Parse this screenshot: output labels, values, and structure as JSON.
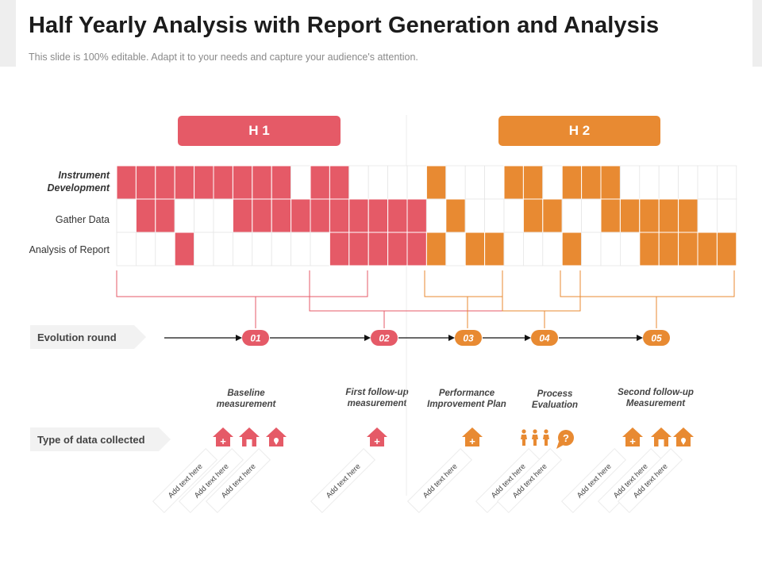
{
  "header": {
    "title": "Half Yearly Analysis  with Report Generation and Analysis",
    "subtitle": "This slide is 100% editable. Adapt it to your needs and capture your audience's attention."
  },
  "colors": {
    "red": "#e55a67",
    "orange": "#e88a32",
    "grid": "#e6e6e6",
    "label_bg": "#f2f2f2"
  },
  "halves": [
    {
      "label": "H 1",
      "color": "#e55a67"
    },
    {
      "label": "H 2",
      "color": "#e88a32"
    }
  ],
  "rows": [
    {
      "label": "Instrument\nDevelopment",
      "italic": true
    },
    {
      "label": "Gather Data",
      "italic": false
    },
    {
      "label": "Analysis of Report",
      "italic": false
    }
  ],
  "grid": {
    "columns": 32,
    "h1_columns": 15,
    "filled": [
      [
        0,
        1,
        2,
        3,
        4,
        5,
        6,
        7,
        8,
        10,
        11,
        16,
        20,
        21,
        23,
        24,
        25
      ],
      [
        1,
        2,
        6,
        7,
        8,
        9,
        10,
        11,
        12,
        13,
        14,
        15,
        17,
        21,
        22,
        25,
        26,
        27,
        28,
        29
      ],
      [
        3,
        11,
        12,
        13,
        14,
        15,
        16,
        18,
        19,
        23,
        27,
        28,
        29,
        30,
        31
      ]
    ]
  },
  "evolution": {
    "label": "Evolution round",
    "rounds": [
      "01",
      "02",
      "03",
      "04",
      "05"
    ]
  },
  "data_collected": {
    "label": "Type of data collected",
    "steps": [
      {
        "label": "Baseline\nmeasurement"
      },
      {
        "label": "First follow-up\nmeasurement"
      },
      {
        "label": "Performance\nImprovement Plan"
      },
      {
        "label": "Process\nEvaluation"
      },
      {
        "label": "Second follow-up\nMeasurement"
      }
    ],
    "placeholder": "Add text here",
    "question_mark": "?",
    "plus_sign": "+"
  }
}
